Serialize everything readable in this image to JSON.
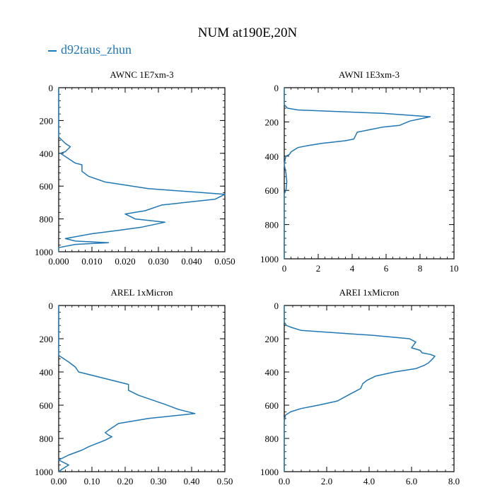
{
  "title": "NUM at190E,20N",
  "legend": {
    "series_name": "d92taus_zhun",
    "color": "#1f77b4"
  },
  "chart_data": [
    {
      "type": "line",
      "title": "AWNC  1E7xm-3",
      "xlim": [
        0,
        0.05
      ],
      "ylim": [
        0,
        1000
      ],
      "xticks": [
        0,
        0.01,
        0.02,
        0.03,
        0.04,
        0.05
      ],
      "xtick_labels": [
        "0.000",
        "0.010",
        "0.020",
        "0.030",
        "0.040",
        "0.050"
      ],
      "yticks": [
        0,
        200,
        400,
        600,
        800,
        1000
      ],
      "ytick_labels": [
        "0",
        "200",
        "400",
        "600",
        "800",
        "1000"
      ],
      "series": [
        {
          "name": "d92taus_zhun",
          "points": [
            [
              0,
              0
            ],
            [
              0,
              300
            ],
            [
              0.002,
              340
            ],
            [
              0.0035,
              360
            ],
            [
              0.002,
              390
            ],
            [
              0.0005,
              400
            ],
            [
              0.002,
              420
            ],
            [
              0.005,
              460
            ],
            [
              0.007,
              470
            ],
            [
              0.007,
              510
            ],
            [
              0.009,
              540
            ],
            [
              0.014,
              575
            ],
            [
              0.027,
              615
            ],
            [
              0.05,
              650
            ],
            [
              0.047,
              680
            ],
            [
              0.031,
              715
            ],
            [
              0.026,
              750
            ],
            [
              0.02,
              770
            ],
            [
              0.023,
              800
            ],
            [
              0.032,
              820
            ],
            [
              0.025,
              850
            ],
            [
              0.018,
              870
            ],
            [
              0.01,
              890
            ],
            [
              0.002,
              920
            ],
            [
              0.005,
              935
            ],
            [
              0.015,
              945
            ],
            [
              0.005,
              955
            ],
            [
              0,
              975
            ],
            [
              0,
              1000
            ]
          ]
        }
      ]
    },
    {
      "type": "line",
      "title": "AWNI  1E3xm-3",
      "xlim": [
        0,
        10
      ],
      "ylim": [
        0,
        1000
      ],
      "xticks": [
        0,
        2,
        4,
        6,
        8,
        10
      ],
      "xtick_labels": [
        "0",
        "2",
        "4",
        "6",
        "8",
        "10"
      ],
      "yticks": [
        0,
        200,
        400,
        600,
        800,
        1000
      ],
      "ytick_labels": [
        "0",
        "200",
        "400",
        "600",
        "800",
        "1000"
      ],
      "series": [
        {
          "name": "d92taus_zhun",
          "points": [
            [
              0,
              0
            ],
            [
              0,
              100
            ],
            [
              0.2,
              120
            ],
            [
              0.8,
              130
            ],
            [
              5.8,
              150
            ],
            [
              8.6,
              170
            ],
            [
              8.1,
              180
            ],
            [
              7.4,
              195
            ],
            [
              6.8,
              220
            ],
            [
              5.8,
              230
            ],
            [
              5.3,
              240
            ],
            [
              4.3,
              260
            ],
            [
              4.1,
              300
            ],
            [
              3.6,
              310
            ],
            [
              2.2,
              325
            ],
            [
              1.3,
              340
            ],
            [
              0.8,
              350
            ],
            [
              0.4,
              375
            ],
            [
              0.3,
              390
            ],
            [
              0.1,
              400
            ],
            [
              0.05,
              420
            ],
            [
              0,
              450
            ],
            [
              0.1,
              500
            ],
            [
              0.15,
              550
            ],
            [
              0.1,
              600
            ],
            [
              0,
              620
            ],
            [
              0,
              1000
            ]
          ]
        }
      ]
    },
    {
      "type": "line",
      "title": "AREL  1xMicron",
      "xlim": [
        0,
        0.5
      ],
      "ylim": [
        0,
        1000
      ],
      "xticks": [
        0,
        0.1,
        0.2,
        0.3,
        0.4,
        0.5
      ],
      "xtick_labels": [
        "0.00",
        "0.10",
        "0.20",
        "0.30",
        "0.40",
        "0.50"
      ],
      "yticks": [
        0,
        200,
        400,
        600,
        800,
        1000
      ],
      "ytick_labels": [
        "0",
        "200",
        "400",
        "600",
        "800",
        "1000"
      ],
      "series": [
        {
          "name": "d92taus_zhun",
          "points": [
            [
              0,
              0
            ],
            [
              0,
              300
            ],
            [
              0.03,
              340
            ],
            [
              0.05,
              370
            ],
            [
              0.06,
              400
            ],
            [
              0.14,
              440
            ],
            [
              0.21,
              475
            ],
            [
              0.21,
              510
            ],
            [
              0.24,
              540
            ],
            [
              0.32,
              595
            ],
            [
              0.36,
              625
            ],
            [
              0.41,
              650
            ],
            [
              0.27,
              680
            ],
            [
              0.18,
              710
            ],
            [
              0.15,
              750
            ],
            [
              0.14,
              765
            ],
            [
              0.15,
              780
            ],
            [
              0.16,
              790
            ],
            [
              0.14,
              810
            ],
            [
              0.09,
              850
            ],
            [
              0.07,
              870
            ],
            [
              0.03,
              900
            ],
            [
              0,
              930
            ],
            [
              0.03,
              960
            ],
            [
              0.01,
              985
            ],
            [
              0,
              1000
            ]
          ]
        }
      ]
    },
    {
      "type": "line",
      "title": "AREI  1xMicron",
      "xlim": [
        0,
        8
      ],
      "ylim": [
        0,
        1000
      ],
      "xticks": [
        0,
        2,
        4,
        6,
        8
      ],
      "xtick_labels": [
        "0.0",
        "2.0",
        "4.0",
        "6.0",
        "8.0"
      ],
      "yticks": [
        0,
        200,
        400,
        600,
        800,
        1000
      ],
      "ytick_labels": [
        "0",
        "200",
        "400",
        "600",
        "800",
        "1000"
      ],
      "series": [
        {
          "name": "d92taus_zhun",
          "points": [
            [
              0,
              0
            ],
            [
              0,
              100
            ],
            [
              0.1,
              120
            ],
            [
              0.3,
              130
            ],
            [
              0.8,
              150
            ],
            [
              4.2,
              180
            ],
            [
              5.9,
              200
            ],
            [
              6.2,
              220
            ],
            [
              6.0,
              255
            ],
            [
              6.4,
              270
            ],
            [
              6.5,
              285
            ],
            [
              6.9,
              295
            ],
            [
              7.1,
              305
            ],
            [
              7.0,
              320
            ],
            [
              6.8,
              345
            ],
            [
              6.6,
              360
            ],
            [
              6.2,
              380
            ],
            [
              5.2,
              400
            ],
            [
              4.3,
              425
            ],
            [
              3.9,
              450
            ],
            [
              3.7,
              470
            ],
            [
              3.6,
              500
            ],
            [
              3.0,
              540
            ],
            [
              2.5,
              575
            ],
            [
              1.6,
              600
            ],
            [
              0.8,
              620
            ],
            [
              0.3,
              640
            ],
            [
              0.05,
              660
            ],
            [
              0,
              700
            ],
            [
              0,
              1000
            ]
          ]
        }
      ]
    }
  ]
}
